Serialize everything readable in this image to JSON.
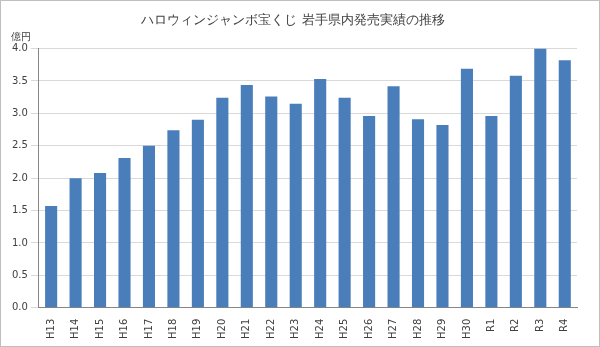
{
  "chart_data": {
    "type": "bar",
    "title": "ハロウィンジャンボ宝くじ 岩手県内発売実績の推移",
    "ylabel": "億円",
    "categories": [
      "H13",
      "H14",
      "H15",
      "H16",
      "H17",
      "H18",
      "H19",
      "H20",
      "H21",
      "H22",
      "H23",
      "H24",
      "H25",
      "H26",
      "H27",
      "H28",
      "H29",
      "H30",
      "R1",
      "R2",
      "R3",
      "R4"
    ],
    "values": [
      1.57,
      2.0,
      2.08,
      2.31,
      2.5,
      2.74,
      2.9,
      3.24,
      3.44,
      3.26,
      3.15,
      3.53,
      3.24,
      2.96,
      3.42,
      2.91,
      2.82,
      3.69,
      2.96,
      3.58,
      4.0,
      3.82
    ],
    "color": "#4a7ebb",
    "ylim": [
      0,
      4
    ],
    "yticks": [
      {
        "value": 0,
        "label": "0.0"
      },
      0.5,
      {
        "value": 1,
        "label": "1.0"
      },
      1.5,
      {
        "value": 2,
        "label": "2.0"
      },
      2.5,
      {
        "value": 3,
        "label": "3.0"
      },
      3.5,
      {
        "value": 4,
        "label": "4.0"
      }
    ],
    "grid": true
  }
}
